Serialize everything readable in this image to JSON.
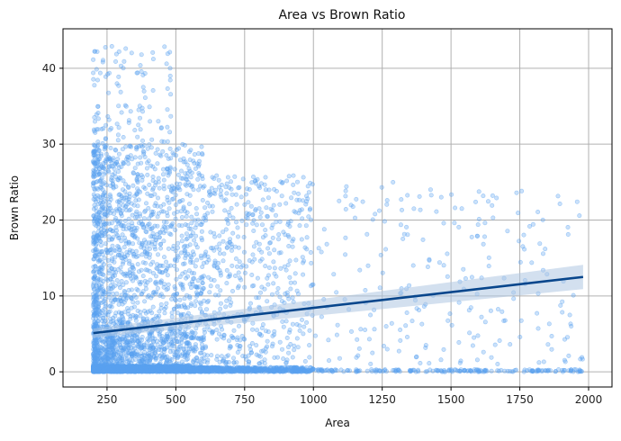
{
  "chart_data": {
    "type": "scatter",
    "title": "Area vs Brown Ratio",
    "xlabel": "Area",
    "ylabel": "Brown Ratio",
    "xlim": [
      90,
      2085
    ],
    "ylim": [
      -2,
      45.2
    ],
    "xticks": [
      250,
      500,
      750,
      1000,
      1250,
      1500,
      1750,
      2000
    ],
    "yticks": [
      0,
      10,
      20,
      30,
      40
    ],
    "grid": true,
    "point_color": "#5ba3f0",
    "line_color": "#08468c",
    "band_color": "#aec6e2",
    "points": {
      "x_range": [
        200,
        1980
      ],
      "y_range": [
        0,
        43
      ],
      "seed": 7,
      "clusters": [
        {
          "x": [
            200,
            550
          ],
          "y": [
            0,
            0.8
          ],
          "n": 1400,
          "skew": 1.8
        },
        {
          "x": [
            550,
            1000
          ],
          "y": [
            0,
            0.6
          ],
          "n": 700,
          "skew": 1.5
        },
        {
          "x": [
            1000,
            1980
          ],
          "y": [
            0,
            0.3
          ],
          "n": 180,
          "skew": 1.0
        },
        {
          "x": [
            200,
            600
          ],
          "y": [
            0,
            6
          ],
          "n": 900,
          "skew": 1.6
        },
        {
          "x": [
            200,
            600
          ],
          "y": [
            6,
            30
          ],
          "n": 1300,
          "skew": 1.6
        },
        {
          "x": [
            200,
            500
          ],
          "y": [
            30,
            43
          ],
          "n": 110,
          "skew": 1.4
        },
        {
          "x": [
            600,
            1000
          ],
          "y": [
            1,
            26
          ],
          "n": 520,
          "skew": 1.2
        },
        {
          "x": [
            1000,
            1980
          ],
          "y": [
            1,
            25
          ],
          "n": 230,
          "skew": 1.0
        }
      ]
    },
    "regression": {
      "x": [
        200,
        1980
      ],
      "y": [
        5.1,
        12.5
      ],
      "band_halfwidth": [
        0.6,
        1.6
      ]
    }
  }
}
